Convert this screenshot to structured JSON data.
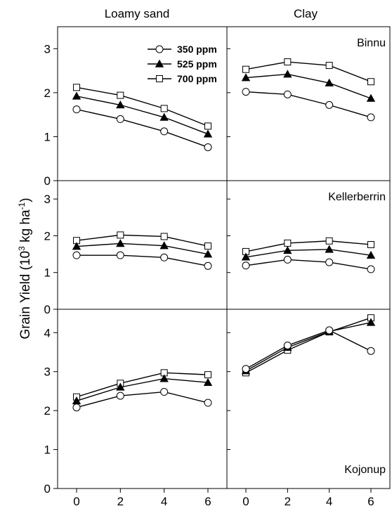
{
  "figure": {
    "ylabel_main": "Grain Yield (10",
    "ylabel_sup_exp": "3",
    "ylabel_units": " kg ha",
    "ylabel_sup_neg": "-1",
    "ylabel_close": ")"
  },
  "columns": [
    "Loamy sand",
    "Clay"
  ],
  "rows": [
    "Binnu",
    "Kellerberrin",
    "Kojonup"
  ],
  "legend": [
    "350 ppm",
    "525 ppm",
    "700 ppm"
  ],
  "chart_data": {
    "type": "line",
    "x": [
      0,
      2,
      4,
      6
    ],
    "xticks": [
      "0",
      "2",
      "4",
      "6"
    ],
    "series_styles": [
      {
        "name": "350 ppm",
        "marker": "open-circle"
      },
      {
        "name": "525 ppm",
        "marker": "filled-triangle"
      },
      {
        "name": "700 ppm",
        "marker": "open-square"
      }
    ],
    "panels": [
      {
        "row": "Binnu",
        "column": "Loamy sand",
        "site_label": "",
        "ylim": [
          0,
          3.5
        ],
        "yticks": [
          0,
          1,
          2,
          3
        ],
        "series": [
          {
            "name": "350 ppm",
            "values": [
              1.62,
              1.4,
              1.12,
              0.76
            ]
          },
          {
            "name": "525 ppm",
            "values": [
              1.92,
              1.72,
              1.44,
              1.06
            ]
          },
          {
            "name": "700 ppm",
            "values": [
              2.12,
              1.94,
              1.64,
              1.24
            ]
          }
        ]
      },
      {
        "row": "Binnu",
        "column": "Clay",
        "site_label": "Binnu",
        "ylim": [
          0,
          3.5
        ],
        "yticks": [
          0,
          1,
          2,
          3
        ],
        "series": [
          {
            "name": "350 ppm",
            "values": [
              2.02,
              1.96,
              1.72,
              1.44
            ]
          },
          {
            "name": "525 ppm",
            "values": [
              2.34,
              2.42,
              2.22,
              1.87
            ]
          },
          {
            "name": "700 ppm",
            "values": [
              2.53,
              2.7,
              2.62,
              2.25
            ]
          }
        ]
      },
      {
        "row": "Kellerberrin",
        "column": "Loamy sand",
        "site_label": "",
        "ylim": [
          0,
          3.5
        ],
        "yticks": [
          0,
          1,
          2,
          3
        ],
        "series": [
          {
            "name": "350 ppm",
            "values": [
              1.47,
              1.47,
              1.41,
              1.18
            ]
          },
          {
            "name": "525 ppm",
            "values": [
              1.71,
              1.79,
              1.73,
              1.5
            ]
          },
          {
            "name": "700 ppm",
            "values": [
              1.87,
              2.02,
              1.98,
              1.72
            ]
          }
        ]
      },
      {
        "row": "Kellerberrin",
        "column": "Clay",
        "site_label": "Kellerberrin",
        "ylim": [
          0,
          3.5
        ],
        "yticks": [
          0,
          1,
          2,
          3
        ],
        "series": [
          {
            "name": "350 ppm",
            "values": [
              1.19,
              1.35,
              1.28,
              1.09
            ]
          },
          {
            "name": "525 ppm",
            "values": [
              1.42,
              1.6,
              1.63,
              1.47
            ]
          },
          {
            "name": "700 ppm",
            "values": [
              1.57,
              1.8,
              1.86,
              1.76
            ]
          }
        ]
      },
      {
        "row": "Kojonup",
        "column": "Loamy sand",
        "site_label": "",
        "ylim": [
          0,
          4.6
        ],
        "yticks": [
          0,
          1,
          2,
          3,
          4
        ],
        "series": [
          {
            "name": "350 ppm",
            "values": [
              2.08,
              2.38,
              2.48,
              2.2
            ]
          },
          {
            "name": "525 ppm",
            "values": [
              2.25,
              2.6,
              2.82,
              2.72
            ]
          },
          {
            "name": "700 ppm",
            "values": [
              2.35,
              2.7,
              2.97,
              2.92
            ]
          }
        ]
      },
      {
        "row": "Kojonup",
        "column": "Clay",
        "site_label": "Kojonup",
        "ylim": [
          0,
          4.6
        ],
        "yticks": [
          0,
          1,
          2,
          3,
          4
        ],
        "series": [
          {
            "name": "350 ppm",
            "values": [
              3.07,
              3.67,
              4.06,
              3.53
            ]
          },
          {
            "name": "525 ppm",
            "values": [
              3.02,
              3.62,
              4.03,
              4.26
            ]
          },
          {
            "name": "700 ppm",
            "values": [
              2.97,
              3.55,
              4.02,
              4.38
            ]
          }
        ]
      }
    ]
  }
}
